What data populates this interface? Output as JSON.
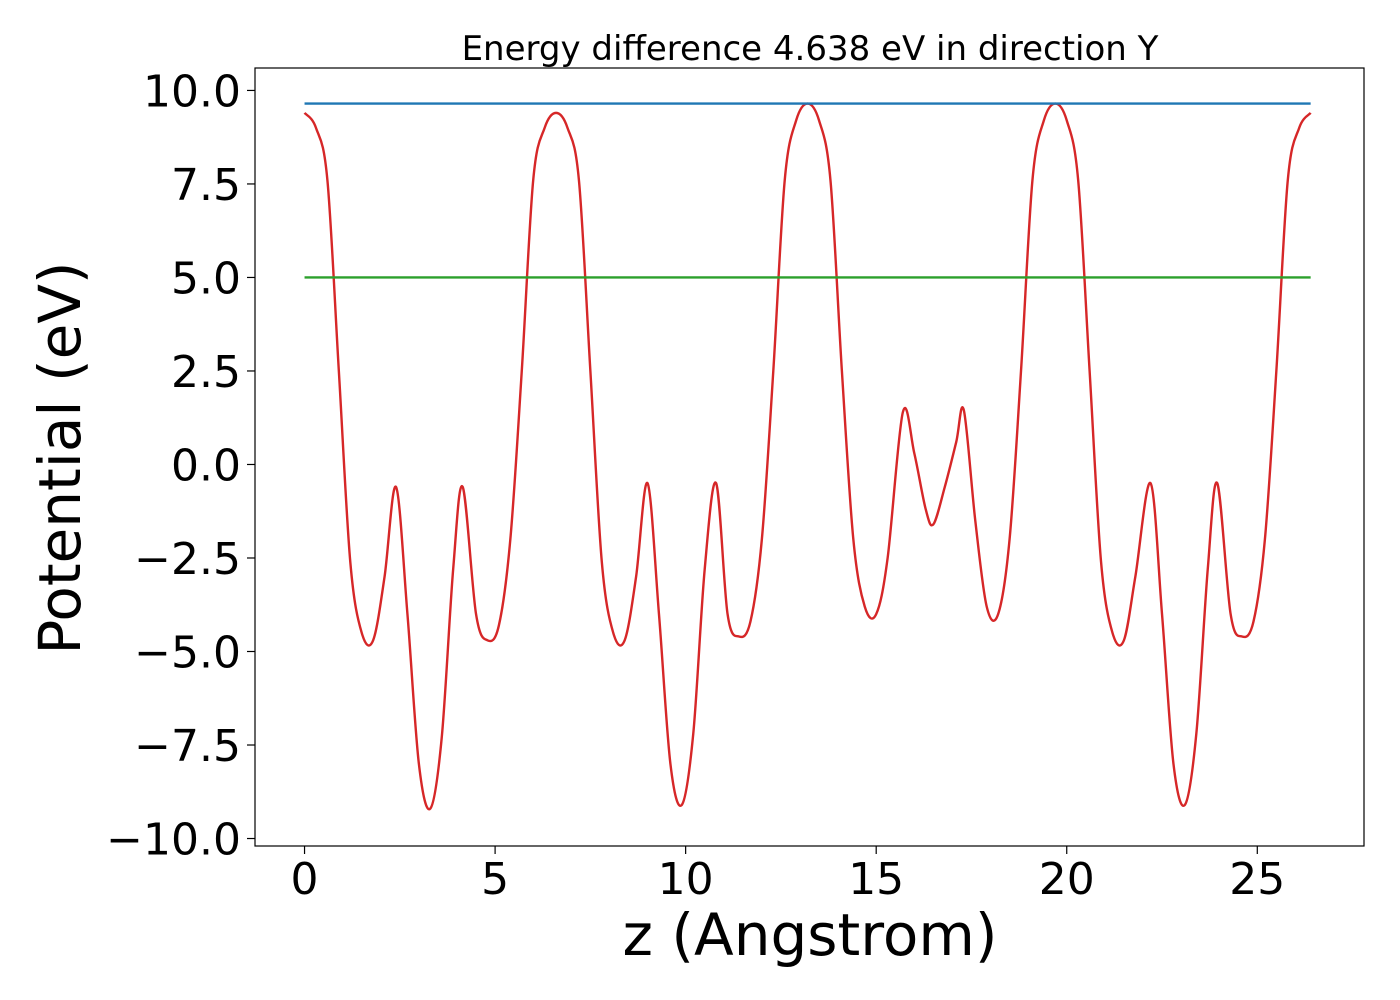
{
  "chart_data": {
    "type": "line",
    "title": "Energy difference 4.638 eV in direction Y",
    "xlabel": "z (Angstrom)",
    "ylabel": "Potential (eV)",
    "xlim": [
      -1.3,
      27.8
    ],
    "ylim": [
      -10.2,
      10.6
    ],
    "xticks": [
      0,
      5,
      10,
      15,
      20,
      25
    ],
    "xtick_labels": [
      "0",
      "5",
      "10",
      "15",
      "20",
      "25"
    ],
    "yticks": [
      10.0,
      7.5,
      5.0,
      2.5,
      0.0,
      -2.5,
      -5.0,
      -7.5,
      -10.0
    ],
    "ytick_labels": [
      "10.0",
      "7.5",
      "5.0",
      "2.5",
      "0.0",
      "−2.5",
      "−5.0",
      "−7.5",
      "−10.0"
    ],
    "grid": false,
    "legend": "none",
    "series": [
      {
        "color": "#d62728",
        "x": [
          0.0,
          0.3,
          0.6,
          0.9,
          1.2,
          1.5,
          1.8,
          2.1,
          2.4,
          2.7,
          3.0,
          3.3,
          3.6,
          3.9,
          4.15,
          4.5,
          4.8,
          5.1,
          5.4,
          5.7,
          6.0,
          6.3,
          6.6,
          6.9,
          7.2,
          7.5,
          7.8,
          8.1,
          8.4,
          8.7,
          9.0,
          9.3,
          9.6,
          9.9,
          10.2,
          10.5,
          10.8,
          11.1,
          11.4,
          11.7,
          12.0,
          12.3,
          12.6,
          12.9,
          13.2,
          13.5,
          13.8,
          14.1,
          14.4,
          14.7,
          15.0,
          15.3,
          15.7,
          16.0,
          16.3,
          16.5,
          16.8,
          17.1,
          17.3,
          17.6,
          17.9,
          18.2,
          18.5,
          18.8,
          19.1,
          19.4,
          19.7,
          20.0,
          20.3,
          20.6,
          20.9,
          21.2,
          21.5,
          21.8,
          22.2,
          22.5,
          22.8,
          23.1,
          23.4,
          23.7,
          23.95,
          24.3,
          24.6,
          24.9,
          25.2,
          25.5,
          25.8,
          26.1,
          26.4
        ],
        "y": [
          9.4,
          9.0,
          7.6,
          2.5,
          -2.6,
          -4.5,
          -4.7,
          -3.0,
          -0.6,
          -4.0,
          -8.0,
          -9.2,
          -7.3,
          -2.8,
          -0.6,
          -4.0,
          -4.7,
          -4.3,
          -2.0,
          2.5,
          7.6,
          9.0,
          9.4,
          9.0,
          7.6,
          2.5,
          -2.6,
          -4.5,
          -4.7,
          -3.0,
          -0.5,
          -4.0,
          -8.0,
          -9.1,
          -7.2,
          -2.8,
          -0.5,
          -4.0,
          -4.6,
          -4.2,
          -2.0,
          2.5,
          7.6,
          9.2,
          9.65,
          9.2,
          7.6,
          2.5,
          -2.0,
          -3.8,
          -4.0,
          -2.5,
          1.4,
          0.3,
          -1.2,
          -1.6,
          -0.6,
          0.6,
          1.45,
          -1.5,
          -3.8,
          -4.0,
          -2.0,
          2.5,
          7.6,
          9.2,
          9.65,
          9.2,
          7.6,
          2.5,
          -2.6,
          -4.5,
          -4.7,
          -3.0,
          -0.5,
          -4.0,
          -8.0,
          -9.1,
          -7.2,
          -2.8,
          -0.5,
          -4.0,
          -4.6,
          -4.2,
          -2.0,
          2.5,
          7.6,
          9.0,
          9.4
        ]
      },
      {
        "color": "#1f77b4",
        "x": [
          0.0,
          26.4
        ],
        "y": [
          9.65,
          9.65
        ]
      },
      {
        "color": "#2ca02c",
        "x": [
          0.0,
          26.4
        ],
        "y": [
          5.0,
          5.0
        ]
      }
    ]
  }
}
